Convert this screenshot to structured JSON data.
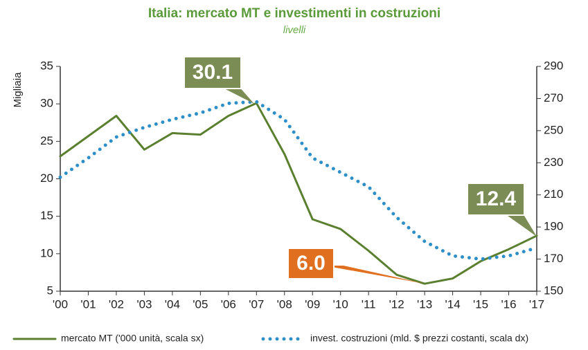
{
  "chart_data": {
    "type": "line",
    "title": "Italia: mercato MT e investimenti in costruzioni",
    "subtitle": "livelli",
    "ylabel": "Migliaia",
    "categories": [
      "'00",
      "'01",
      "'02",
      "'03",
      "'04",
      "'05",
      "'06",
      "'07",
      "'08",
      "'09",
      "'10",
      "'11",
      "'12",
      "'13",
      "'14",
      "'15",
      "'16",
      "'17"
    ],
    "series": [
      {
        "name": "mercato MT ('000 unità, scala sx)",
        "color": "#5a7f2e",
        "style": "solid",
        "values": [
          23.0,
          25.7,
          28.4,
          23.9,
          26.1,
          25.9,
          28.4,
          30.1,
          23.3,
          14.6,
          13.3,
          10.4,
          7.2,
          6.0,
          6.7,
          9.0,
          10.6,
          12.4
        ]
      },
      {
        "name": "invest. costruzioni (mld. $ prezzi costanti, scala dx)",
        "color": "#2e8fc8",
        "style": "dotted",
        "axis": "y2",
        "values": [
          221,
          233,
          246,
          252,
          257,
          261,
          267,
          268,
          257,
          233,
          224,
          215,
          196,
          181,
          172,
          170,
          172,
          177
        ]
      }
    ],
    "ylim": [
      5,
      35
    ],
    "yticks": [
      5,
      10,
      15,
      20,
      25,
      30,
      35
    ],
    "y2lim": [
      150,
      290
    ],
    "y2ticks": [
      150,
      170,
      190,
      210,
      230,
      250,
      270,
      290
    ],
    "annotations": [
      {
        "text": "30.1",
        "color": "#7b8c55"
      },
      {
        "text": "6.0",
        "color": "#e07020"
      },
      {
        "text": "12.4",
        "color": "#7b8c55"
      }
    ]
  }
}
